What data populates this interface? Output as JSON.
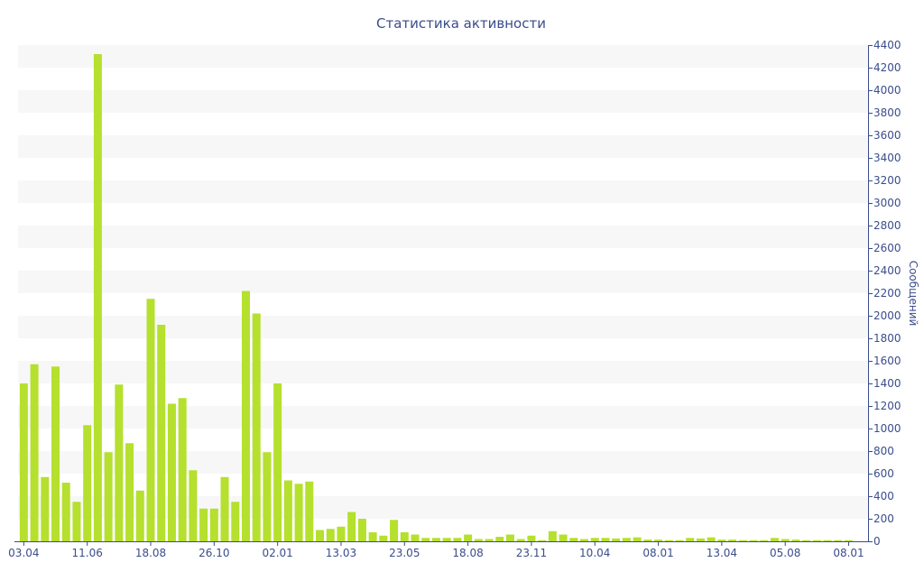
{
  "chart_data": {
    "type": "bar",
    "title": "Статистика активности",
    "ylabel": "Сообщений",
    "xlabel": "",
    "ylim": [
      0,
      4400
    ],
    "ytick_step": 200,
    "grid": "alternating horizontal bands",
    "axis_side": "right",
    "bar_color": "#b5e02e",
    "band_color": "#f7f7f7",
    "text_color": "#3a4d8c",
    "axis_color": "#3a4d8c",
    "x_tick_labels": [
      {
        "label": "03.04",
        "index": 0
      },
      {
        "label": "11.06",
        "index": 6
      },
      {
        "label": "18.08",
        "index": 12
      },
      {
        "label": "26.10",
        "index": 18
      },
      {
        "label": "02.01",
        "index": 24
      },
      {
        "label": "13.03",
        "index": 30
      },
      {
        "label": "23.05",
        "index": 36
      },
      {
        "label": "18.08",
        "index": 42
      },
      {
        "label": "23.11",
        "index": 48
      },
      {
        "label": "10.04",
        "index": 54
      },
      {
        "label": "08.01",
        "index": 60
      },
      {
        "label": "13.04",
        "index": 66
      },
      {
        "label": "05.08",
        "index": 72
      },
      {
        "label": "08.01",
        "index": 78
      }
    ],
    "values": [
      1400,
      1570,
      570,
      1550,
      520,
      350,
      1030,
      4320,
      790,
      1390,
      870,
      450,
      2150,
      1920,
      1220,
      1270,
      630,
      290,
      290,
      570,
      350,
      2220,
      2020,
      790,
      1400,
      540,
      510,
      530,
      100,
      110,
      130,
      260,
      200,
      80,
      50,
      190,
      80,
      60,
      30,
      30,
      30,
      30,
      60,
      20,
      20,
      40,
      60,
      20,
      50,
      10,
      90,
      60,
      30,
      20,
      30,
      30,
      25,
      30,
      35,
      15,
      15,
      10,
      10,
      30,
      25,
      35,
      15,
      15,
      10,
      10,
      10,
      30,
      20,
      15,
      10,
      10,
      10,
      10,
      10
    ]
  }
}
